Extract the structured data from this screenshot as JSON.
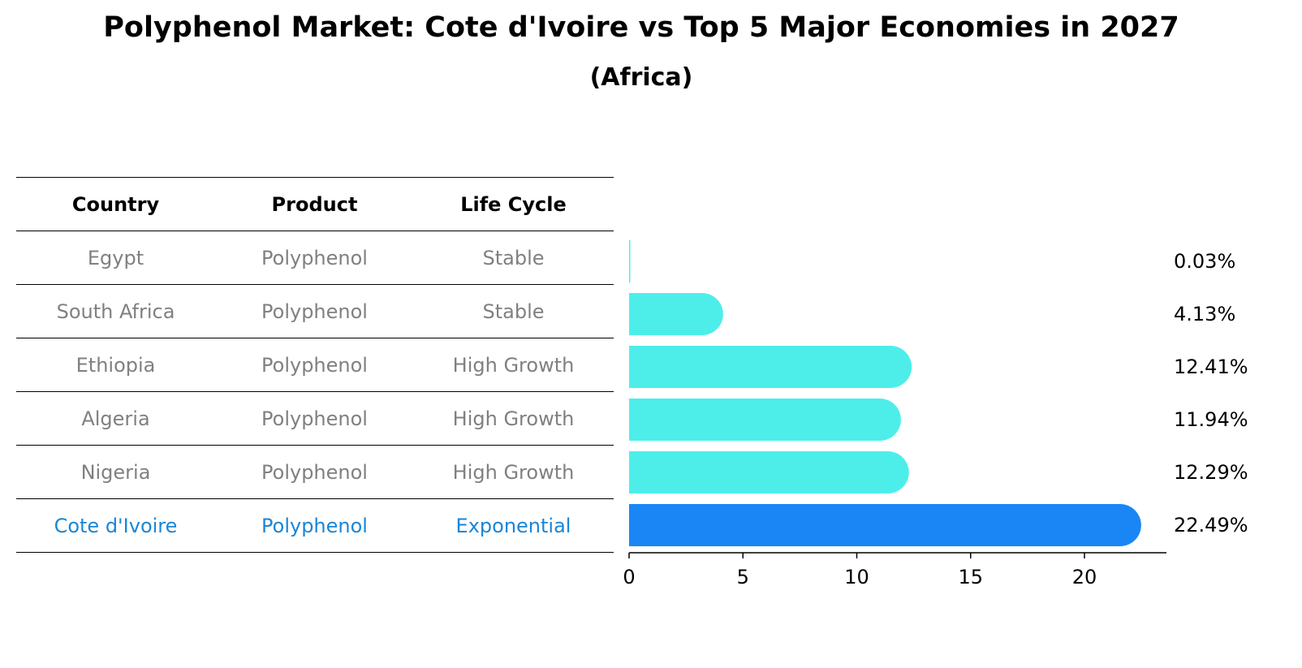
{
  "chart_data": {
    "type": "bar",
    "orientation": "horizontal",
    "title": "Polyphenol Market: Cote d'Ivoire vs Top 5 Major Economies in 2027",
    "subtitle": "(Africa)",
    "table_headers": [
      "Country",
      "Product",
      "Life Cycle"
    ],
    "rows": [
      {
        "country": "Egypt",
        "product": "Polyphenol",
        "life_cycle": "Stable",
        "value": 0.03,
        "label": "0.03%",
        "highlight": false
      },
      {
        "country": "South Africa",
        "product": "Polyphenol",
        "life_cycle": "Stable",
        "value": 4.13,
        "label": "4.13%",
        "highlight": false
      },
      {
        "country": "Ethiopia",
        "product": "Polyphenol",
        "life_cycle": "High Growth",
        "value": 12.41,
        "label": "12.41%",
        "highlight": false
      },
      {
        "country": "Algeria",
        "product": "Polyphenol",
        "life_cycle": "High Growth",
        "value": 11.94,
        "label": "11.94%",
        "highlight": false
      },
      {
        "country": "Nigeria",
        "product": "Polyphenol",
        "life_cycle": "High Growth",
        "value": 12.29,
        "label": "12.29%",
        "highlight": false
      },
      {
        "country": "Cote d'Ivoire",
        "product": "Polyphenol",
        "life_cycle": "Exponential",
        "value": 22.49,
        "label": "22.49%",
        "highlight": true
      }
    ],
    "xticks": [
      0,
      5,
      10,
      15,
      20
    ],
    "xlim": [
      0,
      23.6
    ],
    "colors": {
      "bar": "#4deeea",
      "highlight_bar": "#1a86f5",
      "table_text": "#808080",
      "highlight_text": "#1a86d6"
    }
  }
}
